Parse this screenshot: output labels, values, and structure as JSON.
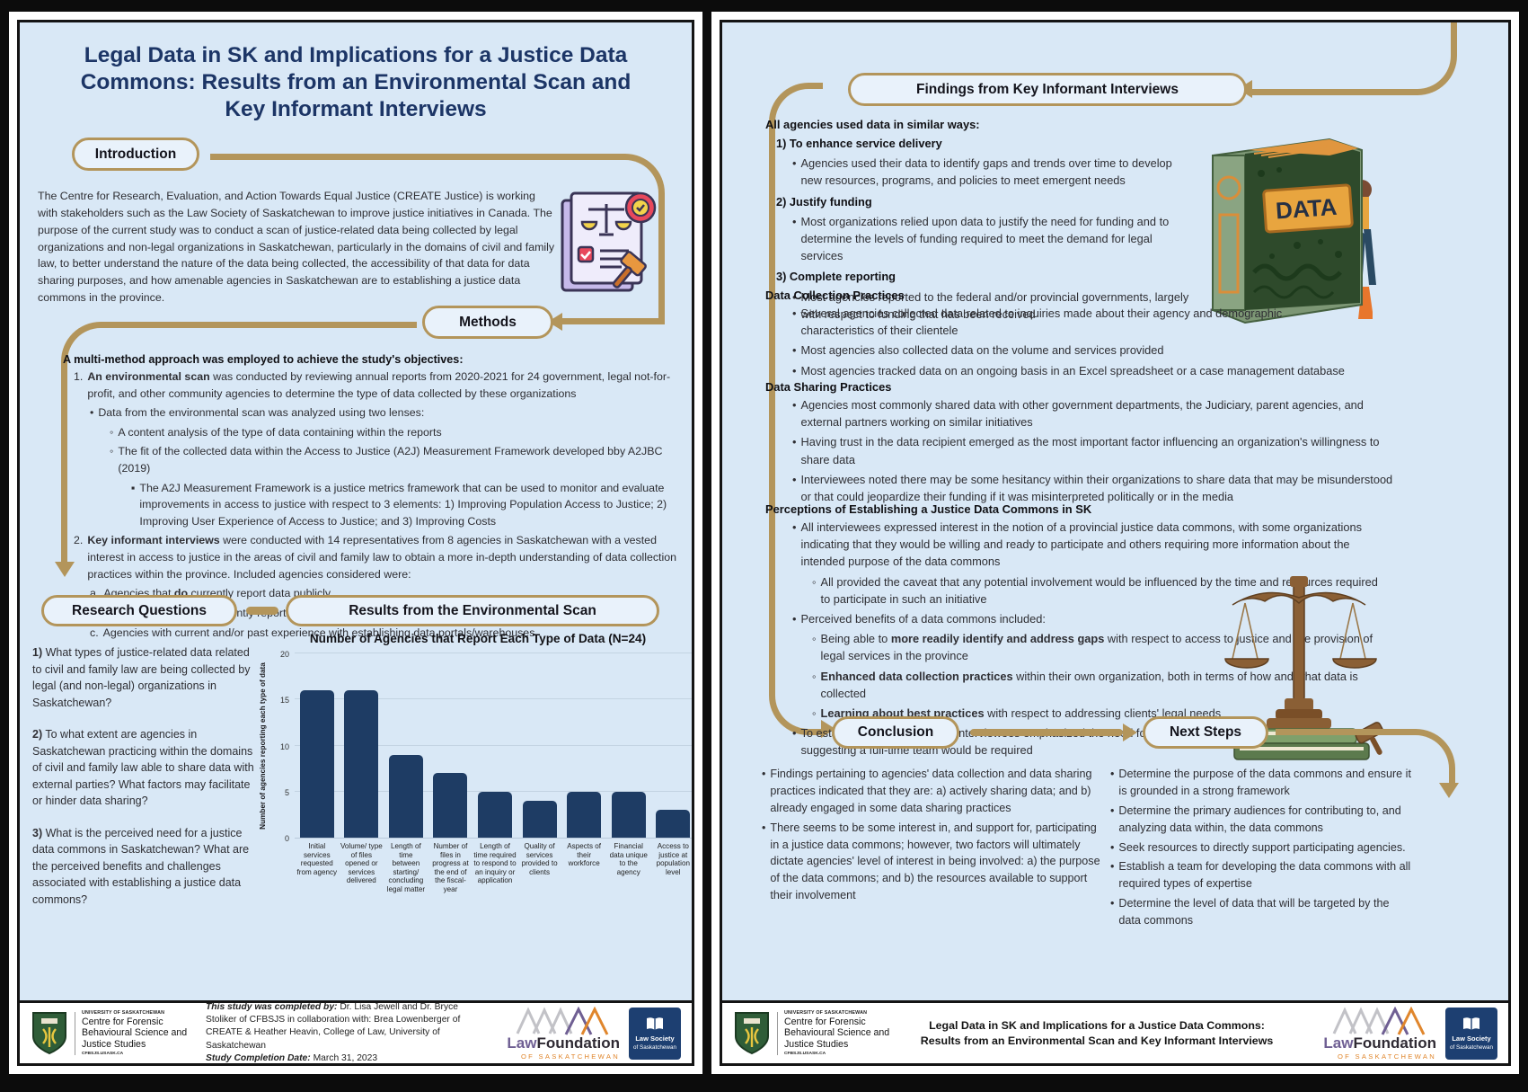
{
  "colors": {
    "page_background": "#d9e8f6",
    "gold_accent": "#b3955b",
    "title_navy": "#1c3566",
    "bar_navy": "#1e3c64",
    "law_society_blue": "#1d3f71",
    "law_foundation_purple": "#6f5f93",
    "law_foundation_orange": "#e0862c",
    "usask_green": "#2f5d38"
  },
  "page1": {
    "title": "Legal Data in SK and Implications for a Justice Data Commons: Results from an Environmental Scan and Key Informant Interviews",
    "headers": {
      "introduction": "Introduction",
      "methods": "Methods",
      "research_questions": "Research Questions",
      "results_scan": "Results from the Environmental Scan"
    },
    "introduction_body": "The Centre for Research, Evaluation, and Action Towards Equal Justice (CREATE Justice) is working with stakeholders such as the Law Society of Saskatchewan to improve justice initiatives in Canada. The purpose of the current study was to conduct a scan of justice-related data being collected by legal organizations and non-legal organizations in Saskatchewan, particularly in the domains of civil and family law, to better understand the nature of the data being collected, the accessibility of that data for data sharing purposes, and how amenable agencies in Saskatchewan are to establishing a justice data commons in the province.",
    "methods_lead": "A multi-method approach was employed to achieve the study's objectives:",
    "methods_items": [
      {
        "ind": 0,
        "mark": "1.",
        "segs": [
          {
            "t": "An environmental scan",
            "b": true
          },
          {
            "t": " was conducted by reviewing annual reports from 2020-2021 for 24 government, legal not-for-profit, and other community agencies to determine the type of data collected by these organizations"
          }
        ]
      },
      {
        "ind": 1,
        "mark": "•",
        "segs": [
          {
            "t": "Data from the environmental scan was analyzed using two lenses:"
          }
        ]
      },
      {
        "ind": 2,
        "mark": "◦",
        "segs": [
          {
            "t": "A content analysis of the type of data containing within the reports"
          }
        ]
      },
      {
        "ind": 2,
        "mark": "◦",
        "segs": [
          {
            "t": "The fit of the collected data within the Access to Justice (A2J) Measurement Framework developed bby A2JBC (2019)"
          }
        ]
      },
      {
        "ind": 3,
        "mark": "▪",
        "segs": [
          {
            "t": "The A2J Measurement Framework is a justice metrics framework that can be used to monitor and evaluate improvements in access to justice with respect to 3 elements: 1) Improving Population Access to Justice; 2) Improving User Experience of Access to Justice; and 3) Improving Costs"
          }
        ]
      },
      {
        "ind": 0,
        "mark": "2.",
        "segs": [
          {
            "t": "Key informant interviews",
            "b": true
          },
          {
            "t": " were conducted with 14 representatives from 8 agencies in Saskatchewan with a vested interest in access to justice in the areas of civil and family law to obtain a more in-depth understanding of data collection practices within the province. Included agencies considered were:"
          }
        ]
      },
      {
        "ind": 1,
        "mark": "a.",
        "segs": [
          {
            "t": "Agencies that "
          },
          {
            "t": "do",
            "b": true
          },
          {
            "t": " currently report data publicly"
          }
        ]
      },
      {
        "ind": 1,
        "mark": "b.",
        "segs": [
          {
            "t": "Agencies that "
          },
          {
            "t": "do not",
            "b": true
          },
          {
            "t": " currently report data publicly"
          }
        ]
      },
      {
        "ind": 1,
        "mark": "c.",
        "segs": [
          {
            "t": "Agencies with current and/or past experience with establishing data portals/warehouses"
          }
        ]
      }
    ],
    "research_questions": [
      [
        {
          "t": "1)",
          "b": true
        },
        {
          "t": " What types of justice-related data related to civil and family law are being collected by legal (and non-legal) organizations in Saskatchewan?"
        }
      ],
      [
        {
          "t": "2)",
          "b": true
        },
        {
          "t": " To what extent are agencies in Saskatchewan practicing within the domains of civil and family law able to share data with external parties? What factors may facilitate or hinder data sharing?"
        }
      ],
      [
        {
          "t": "3)",
          "b": true
        },
        {
          "t": " What is the perceived need for a justice data commons in Saskatchewan? What are the perceived benefits and challenges associated with establishing a justice data commons?"
        }
      ]
    ]
  },
  "chart_data": {
    "type": "bar",
    "title": "Number of Agencies that Report Each Type of Data (N=24)",
    "ylabel": "Number of agencies reporting each type of data",
    "xlabel": "",
    "ylim": [
      0,
      20
    ],
    "yticks": [
      0,
      5,
      10,
      15,
      20
    ],
    "grid": true,
    "bar_color": "#1e3c64",
    "categories": [
      "Initial services requested from agency",
      "Volume/ type of files opened or services delivered",
      "Length of time between starting/ concluding legal matter",
      "Number of files in progress at the end of the fiscal- year",
      "Length of time required to respond to an inquiry or application",
      "Quality of services provided to clients",
      "Aspects of their workforce",
      "Financial data unique to the agency",
      "Access to justice at population level"
    ],
    "values": [
      16,
      16,
      9,
      7,
      5,
      4,
      5,
      5,
      3
    ]
  },
  "page2": {
    "headers": {
      "findings": "Findings from Key Informant Interviews",
      "conclusion": "Conclusion",
      "next_steps": "Next Steps"
    },
    "used_data_heading": "All agencies used data in similar ways:",
    "used_data_items": [
      {
        "ind": 0,
        "head": true,
        "segs": [
          {
            "t": "1) To enhance service delivery",
            "b": true
          }
        ]
      },
      {
        "ind": 1,
        "mark": "•",
        "segs": [
          {
            "t": "Agencies used their data to identify gaps and trends over time to develop new resources, programs, and policies to meet emergent needs"
          }
        ]
      },
      {
        "ind": 0,
        "head": true,
        "segs": [
          {
            "t": "2) Justify funding",
            "b": true
          }
        ]
      },
      {
        "ind": 1,
        "mark": "•",
        "segs": [
          {
            "t": "Most organizations relied upon data to justify the need for funding and to determine the levels of funding required to meet the demand for legal services"
          }
        ]
      },
      {
        "ind": 0,
        "head": true,
        "segs": [
          {
            "t": "3) Complete reporting",
            "b": true
          }
        ]
      },
      {
        "ind": 1,
        "mark": "•",
        "segs": [
          {
            "t": "Most agencies reported to the federal and/or provincial governments, largely with respect to funding that has been received"
          }
        ]
      }
    ],
    "data_collection_heading": "Data Collection Practices",
    "data_collection_items": [
      {
        "ind": 1,
        "mark": "•",
        "segs": [
          {
            "t": "Several agencies collected data related to inquiries made about their agency and demographic characteristics of their clientele"
          }
        ]
      },
      {
        "ind": 1,
        "mark": "•",
        "segs": [
          {
            "t": "Most agencies also collected data on the volume and services provided"
          }
        ]
      },
      {
        "ind": 1,
        "mark": "•",
        "segs": [
          {
            "t": "Most agencies tracked data on an ongoing basis in an Excel spreadsheet or a case management database"
          }
        ]
      }
    ],
    "data_sharing_heading": "Data Sharing Practices",
    "data_sharing_items": [
      {
        "ind": 1,
        "mark": "•",
        "segs": [
          {
            "t": "Agencies most commonly shared data with other government departments, the Judiciary, parent agencies, and external partners working on similar initiatives"
          }
        ]
      },
      {
        "ind": 1,
        "mark": "•",
        "segs": [
          {
            "t": "Having trust in the data recipient emerged as the most important factor influencing an organization's willingness to share data"
          }
        ]
      },
      {
        "ind": 1,
        "mark": "•",
        "segs": [
          {
            "t": "Interviewees noted there may be some hesitancy within their organizations to share data that may be misunderstood or that could jeopardize their funding if it was misinterpreted politically or in the media"
          }
        ]
      }
    ],
    "perceptions_heading": "Perceptions of Establishing a Justice Data Commons in SK",
    "perceptions_items": [
      {
        "ind": 1,
        "mark": "•",
        "segs": [
          {
            "t": "All interviewees expressed interest in the notion of a provincial justice data commons, with some organizations indicating that they would be willing and ready to participate and others requiring more information about the intended purpose of the data commons"
          }
        ]
      },
      {
        "ind": 2,
        "mark": "◦",
        "segs": [
          {
            "t": "All provided the caveat that any potential involvement would be influenced by the time and resources required to participate in such an initiative"
          }
        ]
      },
      {
        "ind": 1,
        "mark": "•",
        "segs": [
          {
            "t": "Perceived benefits of a data commons included:"
          }
        ]
      },
      {
        "ind": 2,
        "mark": "◦",
        "segs": [
          {
            "t": "Being able to "
          },
          {
            "t": "more readily identify and address gaps",
            "b": true
          },
          {
            "t": " with respect to access to justice and the provision of legal services in the province"
          }
        ]
      },
      {
        "ind": 2,
        "mark": "◦",
        "segs": [
          {
            "t": "Enhanced data collection practices",
            "b": true
          },
          {
            "t": " within their own organization, both in terms of how and what data is collected"
          }
        ]
      },
      {
        "ind": 2,
        "mark": "◦",
        "segs": [
          {
            "t": "Learning about best practices",
            "b": true
          },
          {
            "t": " with respect to addressing clients' legal needs"
          }
        ]
      },
      {
        "ind": 1,
        "mark": "•",
        "segs": [
          {
            "t": "To establish a data commons, interviewees emphasized the need for dedicated human and financial resources, suggesting a full-time team would be required"
          }
        ]
      }
    ],
    "conclusion_items": [
      {
        "ind": 0,
        "mark": "•",
        "segs": [
          {
            "t": "Findings pertaining to agencies' data collection and data sharing practices indicated that they are: a) actively sharing data; and b) already engaged in some data sharing practices"
          }
        ]
      },
      {
        "ind": 0,
        "mark": "•",
        "segs": [
          {
            "t": "There seems to be some interest in, and support for, participating in a justice data commons; however, two factors will ultimately dictate agencies' level of interest in being involved: a) the purpose of the data commons; and b) the resources available to support their involvement"
          }
        ]
      }
    ],
    "next_steps_items": [
      {
        "ind": 0,
        "mark": "•",
        "segs": [
          {
            "t": "Determine the purpose of the data commons and ensure it is grounded in a strong framework"
          }
        ]
      },
      {
        "ind": 0,
        "mark": "•",
        "segs": [
          {
            "t": "Determine the primary audiences for contributing to, and analyzing data within, the data commons"
          }
        ]
      },
      {
        "ind": 0,
        "mark": "•",
        "segs": [
          {
            "t": "Seek resources to directly support participating agencies."
          }
        ]
      },
      {
        "ind": 0,
        "mark": "•",
        "segs": [
          {
            "t": "Establish a team for developing the data commons with all required types of expertise"
          }
        ]
      },
      {
        "ind": 0,
        "mark": "•",
        "segs": [
          {
            "t": "Determine the level of data that will be targeted by the data commons"
          }
        ]
      }
    ],
    "book_label": "DATA"
  },
  "footer": {
    "usask_eyebrow": "UNIVERSITY OF SASKATCHEWAN",
    "usask_name": "Centre for Forensic Behavioural Science and Justice Studies",
    "usask_url": "CFBSJS.USASK.CA",
    "credit": [
      {
        "t": "This study was completed by: ",
        "b": true,
        "i": true
      },
      {
        "t": "Dr. Lisa Jewell and Dr. Bryce Stoliker of CFBSJS in collaboration with: Brea Lowenberger of CREATE & Heather Heavin, College of Law, University of Saskatchewan"
      }
    ],
    "completion": [
      {
        "t": "Study Completion Date: ",
        "b": true,
        "i": true
      },
      {
        "t": "March 31, 2023"
      }
    ],
    "law_foundation_word1": "Law",
    "law_foundation_word2": "Foundation",
    "law_foundation_sub": "OF SASKATCHEWAN",
    "law_society_line1": "Law Society",
    "law_society_line2": "of Saskatchewan",
    "right_center_title": "Legal Data in SK and Implications for a Justice Data Commons: Results from an Environmental Scan and Key Informant Interviews"
  }
}
